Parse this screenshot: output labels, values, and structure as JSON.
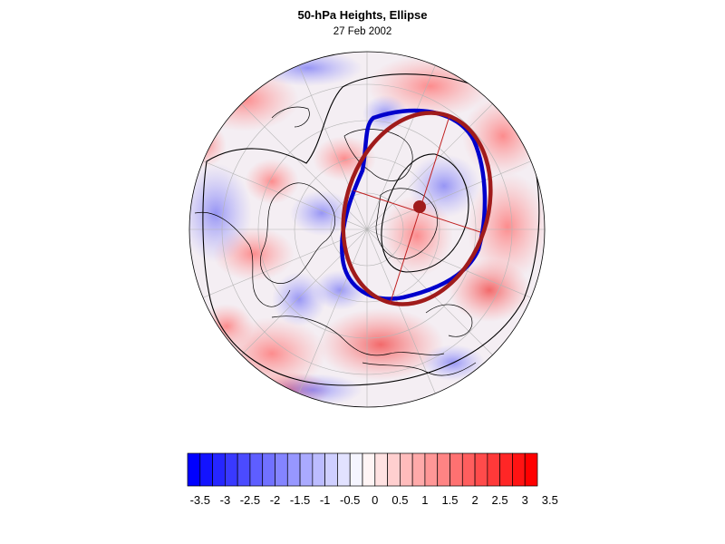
{
  "title": "50-hPa Heights, Ellipse",
  "subtitle": "27 Feb 2002",
  "colors": {
    "negative": "#0000ff",
    "positive": "#ff0000",
    "ellipse_blue": "#0000cc",
    "ellipse_red": "#a01b1b",
    "contour": "#000000"
  },
  "map": {
    "projection": "north polar stereographic",
    "center_marker": "filled-circle"
  },
  "colorbar": {
    "levels": 28,
    "min": -3.5,
    "max": 3.5,
    "tick_labels": [
      "-3.5",
      "-3",
      "-2.5",
      "-2",
      "-1.5",
      "-1",
      "-0.5",
      "0",
      "0.5",
      "1",
      "1.5",
      "2",
      "2.5",
      "3",
      "3.5"
    ]
  }
}
